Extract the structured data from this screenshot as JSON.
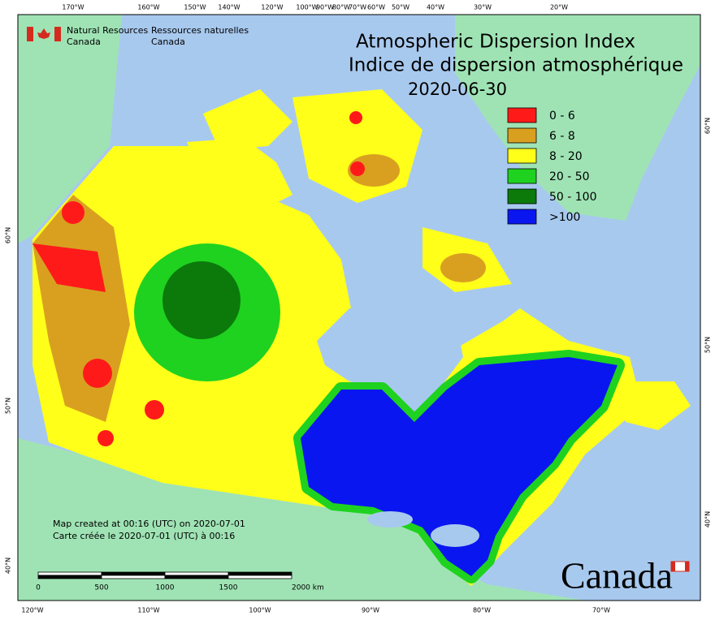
{
  "header": {
    "agency_en": [
      "Natural Resources",
      "Canada"
    ],
    "agency_fr": [
      "Ressources naturelles",
      "Canada"
    ]
  },
  "title": {
    "lines": [
      "Atmospheric Dispersion Index",
      "Indice de dispersion atmosphérique",
      "2020-06-30"
    ]
  },
  "legend": [
    {
      "label": "0 - 6",
      "color": "#ff1a1a"
    },
    {
      "label": "6 - 8",
      "color": "#d9a020"
    },
    {
      "label": "8 - 20",
      "color": "#ffff1a"
    },
    {
      "label": "20 - 50",
      "color": "#1fd21f"
    },
    {
      "label": "50 - 100",
      "color": "#0b7a0b"
    },
    {
      "label": ">100",
      "color": "#0a16f0"
    }
  ],
  "graticule": {
    "top": [
      "170°W",
      "160°W",
      "150°W",
      "140°W",
      "120°W",
      "100°W",
      "90°W",
      "80°W",
      "70°W",
      "60°W",
      "50°W",
      "40°W",
      "30°W",
      "20°W"
    ],
    "bottom": [
      "120°W",
      "110°W",
      "100°W",
      "90°W",
      "80°W",
      "70°W"
    ],
    "left": [
      "60°N",
      "50°N",
      "40°N"
    ],
    "right": [
      "60°N",
      "50°N",
      "40°N"
    ]
  },
  "notes": [
    "Map created at 00:16 (UTC) on 2020-07-01",
    "Carte créée le 2020-07-01 (UTC) à 00:16"
  ],
  "scale_bar": [
    "0",
    "500",
    "1000",
    "1500",
    "2000 km"
  ],
  "wordmark": "Canada"
}
